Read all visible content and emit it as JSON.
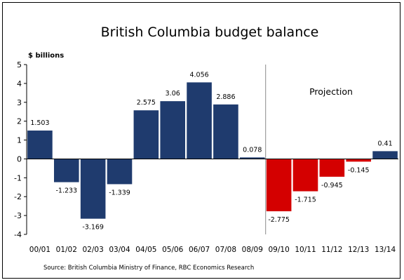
{
  "chart_data": {
    "type": "bar",
    "title": "British Columbia budget balance",
    "ylabel": "$ billions",
    "xlabel": "",
    "ylim": [
      -4,
      5
    ],
    "yticks": [
      5,
      4,
      3,
      2,
      1,
      0,
      -1,
      -2,
      -3,
      -4
    ],
    "categories": [
      "00/01",
      "01/02",
      "02/03",
      "03/04",
      "04/05",
      "05/06",
      "06/07",
      "07/08",
      "08/09",
      "09/10",
      "10/11",
      "11/12",
      "12/13",
      "13/14"
    ],
    "values": [
      1.503,
      -1.233,
      -3.169,
      -1.339,
      2.575,
      3.06,
      4.056,
      2.886,
      0.078,
      -2.775,
      -1.715,
      -0.945,
      -0.145,
      0.41
    ],
    "value_labels": [
      "1.503",
      "-1.233",
      "-3.169",
      "-1.339",
      "2.575",
      "3.06",
      "4.056",
      "2.886",
      "0.078",
      "-2.775",
      "-1.715",
      "-0.945",
      "-0.145",
      "0.41"
    ],
    "colors": [
      "#1f3b6e",
      "#1f3b6e",
      "#1f3b6e",
      "#1f3b6e",
      "#1f3b6e",
      "#1f3b6e",
      "#1f3b6e",
      "#1f3b6e",
      "#1f3b6e",
      "#d40000",
      "#d40000",
      "#d40000",
      "#d40000",
      "#1f3b6e"
    ],
    "annotation": "Projection",
    "source": "Source: British Columbia Ministry of Finance, RBC Economics Research",
    "grid": false,
    "legend": "none"
  }
}
